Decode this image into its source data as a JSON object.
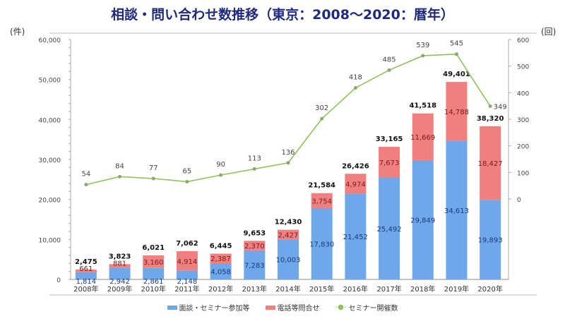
{
  "chart_data": {
    "type": "bar",
    "title": "相談・問い合わせ数推移（東京：2008～2020：暦年）",
    "ylabel_left": "(件)",
    "ylabel_right": "(回)",
    "categories": [
      "2008年",
      "2009年",
      "2010年",
      "2011年",
      "2012年",
      "2013年",
      "2014年",
      "2015年",
      "2016年",
      "2017年",
      "2018年",
      "2019年",
      "2020年"
    ],
    "series": [
      {
        "name": "面談・セミナー参加等",
        "type": "bar",
        "color": "#6fa8ea",
        "values": [
          1814,
          2942,
          2861,
          2148,
          4058,
          7283,
          10003,
          17830,
          21452,
          25492,
          29849,
          34613,
          19893
        ]
      },
      {
        "name": "電話等問合せ",
        "type": "bar",
        "color": "#f08080",
        "values": [
          661,
          881,
          3160,
          4914,
          2387,
          2370,
          2427,
          3754,
          4974,
          7673,
          11669,
          14788,
          18427
        ]
      },
      {
        "name": "セミナー開催数",
        "type": "line",
        "axis": "right",
        "color": "#8fc25a",
        "values": [
          54,
          84,
          77,
          65,
          90,
          113,
          136,
          302,
          418,
          485,
          539,
          545,
          349
        ]
      }
    ],
    "totals": [
      2475,
      3823,
      6021,
      7062,
      6445,
      9653,
      12430,
      21584,
      26426,
      33165,
      41518,
      49401,
      38320
    ],
    "yleft": {
      "range": [
        0,
        60000
      ],
      "ticks": [
        "0",
        "10,000",
        "20,000",
        "30,000",
        "40,000",
        "50,000",
        "60,000"
      ]
    },
    "yright": {
      "range": [
        0,
        600
      ],
      "ticks": [
        "0",
        "100",
        "200",
        "300",
        "400",
        "500",
        "600"
      ]
    },
    "legend_position": "bottom",
    "grid": false
  }
}
